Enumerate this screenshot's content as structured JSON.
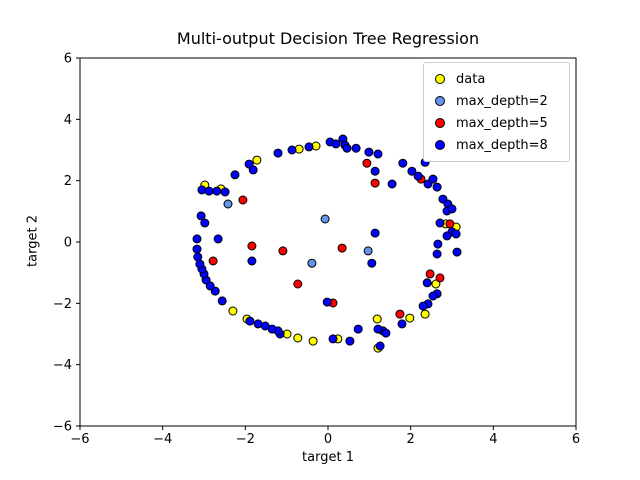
{
  "chart_data": {
    "type": "scatter",
    "title": "Multi-output Decision Tree Regression",
    "xlabel": "target 1",
    "ylabel": "target 2",
    "xlim": [
      -6,
      6
    ],
    "ylim": [
      -6,
      6
    ],
    "xticks": [
      -6,
      -4,
      -2,
      0,
      2,
      4,
      6
    ],
    "yticks": [
      -6,
      -4,
      -2,
      0,
      2,
      4,
      6
    ],
    "grid": false,
    "legend_position": "upper right",
    "marker_edge_color": "#000000",
    "series": [
      {
        "name": "data",
        "color": "#ffff00",
        "points": [
          [
            -2.98,
            1.86
          ],
          [
            -2.59,
            1.73
          ],
          [
            -1.72,
            2.67
          ],
          [
            -0.7,
            3.03
          ],
          [
            -0.29,
            3.13
          ],
          [
            2.85,
            0.59
          ],
          [
            3.1,
            0.49
          ],
          [
            2.61,
            -1.37
          ],
          [
            2.35,
            -2.35
          ],
          [
            1.98,
            -2.48
          ],
          [
            1.19,
            -2.51
          ],
          [
            1.21,
            -3.46
          ],
          [
            0.24,
            -3.16
          ],
          [
            -0.36,
            -3.23
          ],
          [
            -0.73,
            -3.13
          ],
          [
            -0.99,
            -3.0
          ],
          [
            -1.96,
            -2.51
          ],
          [
            -2.3,
            -2.25
          ]
        ]
      },
      {
        "name": "max_depth=2",
        "color": "#6495ed",
        "points": [
          [
            -2.42,
            1.24
          ],
          [
            -0.07,
            0.75
          ],
          [
            -0.39,
            -0.69
          ],
          [
            0.97,
            -0.29
          ]
        ]
      },
      {
        "name": "max_depth=5",
        "color": "#ff0000",
        "points": [
          [
            -2.06,
            1.37
          ],
          [
            0.94,
            2.57
          ],
          [
            1.14,
            1.92
          ],
          [
            2.25,
            2.05
          ],
          [
            2.95,
            0.59
          ],
          [
            2.47,
            -1.04
          ],
          [
            2.71,
            -1.17
          ],
          [
            1.74,
            -2.35
          ],
          [
            -2.78,
            -0.62
          ],
          [
            -1.84,
            -0.13
          ],
          [
            -1.09,
            -0.29
          ],
          [
            0.34,
            -0.2
          ],
          [
            -0.73,
            -1.37
          ],
          [
            0.12,
            -1.99
          ]
        ]
      },
      {
        "name": "max_depth=8",
        "color": "#0000ff",
        "points": [
          [
            -3.05,
            1.7
          ],
          [
            -2.88,
            1.66
          ],
          [
            -2.69,
            1.66
          ],
          [
            -2.49,
            1.63
          ],
          [
            -2.25,
            2.19
          ],
          [
            -1.91,
            2.54
          ],
          [
            -1.81,
            2.35
          ],
          [
            -1.21,
            2.9
          ],
          [
            -0.87,
            3.0
          ],
          [
            -0.46,
            3.1
          ],
          [
            0.05,
            3.26
          ],
          [
            0.19,
            3.2
          ],
          [
            0.36,
            3.36
          ],
          [
            0.41,
            3.16
          ],
          [
            0.46,
            3.06
          ],
          [
            0.68,
            3.06
          ],
          [
            0.99,
            2.93
          ],
          [
            1.21,
            2.87
          ],
          [
            1.14,
            2.31
          ],
          [
            1.55,
            1.89
          ],
          [
            1.81,
            2.57
          ],
          [
            2.03,
            2.31
          ],
          [
            2.18,
            2.15
          ],
          [
            2.35,
            2.6
          ],
          [
            2.42,
            1.89
          ],
          [
            2.54,
            2.05
          ],
          [
            2.64,
            1.79
          ],
          [
            2.78,
            1.4
          ],
          [
            2.9,
            1.24
          ],
          [
            2.88,
            1.01
          ],
          [
            3.0,
            1.08
          ],
          [
            2.71,
            0.62
          ],
          [
            3.0,
            0.33
          ],
          [
            2.88,
            0.2
          ],
          [
            3.1,
            0.26
          ],
          [
            2.66,
            -0.07
          ],
          [
            2.64,
            -0.39
          ],
          [
            3.12,
            -0.33
          ],
          [
            2.4,
            -1.33
          ],
          [
            2.64,
            -1.69
          ],
          [
            2.54,
            -1.76
          ],
          [
            2.42,
            -2.02
          ],
          [
            2.3,
            -2.09
          ],
          [
            1.79,
            -2.67
          ],
          [
            1.33,
            -2.9
          ],
          [
            1.4,
            -2.97
          ],
          [
            1.26,
            -3.39
          ],
          [
            1.21,
            -2.84
          ],
          [
            0.73,
            -2.84
          ],
          [
            0.53,
            -3.23
          ],
          [
            0.12,
            -3.16
          ],
          [
            -1.16,
            -3.0
          ],
          [
            -1.21,
            -2.9
          ],
          [
            -1.35,
            -2.84
          ],
          [
            -1.52,
            -2.74
          ],
          [
            -1.69,
            -2.67
          ],
          [
            -1.89,
            -2.58
          ],
          [
            -2.56,
            -1.92
          ],
          [
            -2.73,
            -1.6
          ],
          [
            -2.85,
            -1.43
          ],
          [
            -2.95,
            -1.24
          ],
          [
            -3.0,
            -1.04
          ],
          [
            -3.05,
            -0.88
          ],
          [
            -3.1,
            -0.72
          ],
          [
            -3.15,
            -0.49
          ],
          [
            -3.17,
            -0.23
          ],
          [
            -3.17,
            0.1
          ],
          [
            -3.07,
            0.85
          ],
          [
            -2.98,
            0.62
          ],
          [
            -2.66,
            0.1
          ],
          [
            -1.84,
            -0.62
          ],
          [
            1.14,
            0.29
          ],
          [
            1.06,
            -0.69
          ],
          [
            -0.02,
            -1.96
          ]
        ]
      }
    ]
  }
}
